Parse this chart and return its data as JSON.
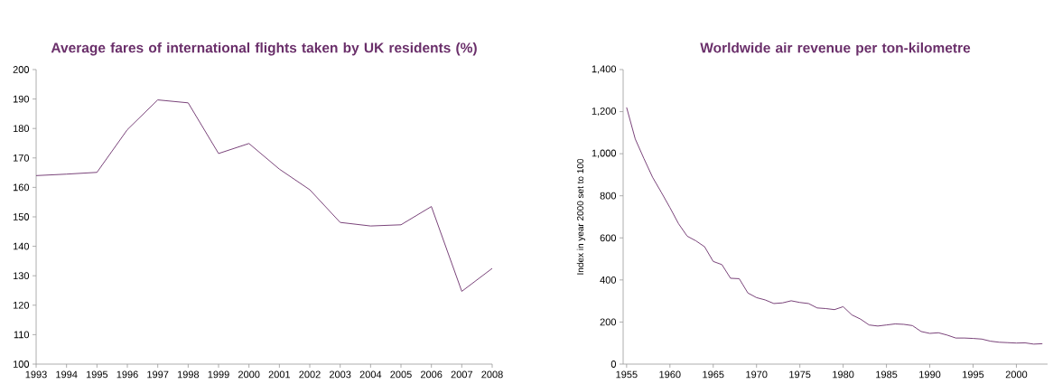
{
  "chart_data": [
    {
      "type": "line",
      "title": "Average fares of international flights taken by UK residents (%)",
      "categories": [
        "1993",
        "1994",
        "1995",
        "1996",
        "1997",
        "1998",
        "1999",
        "2000",
        "2001",
        "2002",
        "2003",
        "2004",
        "2005",
        "2006",
        "2007",
        "2008"
      ],
      "series": [
        {
          "color": "#6b2f6b",
          "values": [
            164,
            164.5,
            165.1,
            179.6,
            189.7,
            188.7,
            171.5,
            174.9,
            166.2,
            159.2,
            148.1,
            146.9,
            147.3,
            153.5,
            124.7,
            132.5
          ]
        }
      ],
      "ylim": [
        100,
        200
      ],
      "yticks": [
        100,
        110,
        120,
        130,
        140,
        150,
        160,
        170,
        180,
        190,
        200
      ],
      "grid": false,
      "marker": "none",
      "line_style": "solid"
    },
    {
      "type": "line",
      "title": "Worldwide air revenue per ton-kilometre",
      "ylabel": "Index in year 2000 set to 100",
      "x": [
        1955,
        1956,
        1957,
        1958,
        1959,
        1960,
        1961,
        1962,
        1963,
        1964,
        1965,
        1966,
        1967,
        1968,
        1969,
        1970,
        1971,
        1972,
        1973,
        1974,
        1975,
        1976,
        1977,
        1978,
        1979,
        1980,
        1981,
        1982,
        1983,
        1984,
        1985,
        1986,
        1987,
        1988,
        1989,
        1990,
        1991,
        1992,
        1993,
        1994,
        1995,
        1996,
        1997,
        1998,
        1999,
        2000,
        2001,
        2002,
        2003
      ],
      "series": [
        {
          "color": "#6b2f6b",
          "values": [
            1220,
            1070,
            977,
            888,
            817,
            744,
            667,
            608,
            586,
            558,
            488,
            473,
            408,
            406,
            338,
            316,
            305,
            288,
            291,
            301,
            293,
            288,
            267,
            264,
            259,
            273,
            234,
            214,
            186,
            181,
            186,
            191,
            189,
            183,
            155,
            146,
            149,
            138,
            124,
            124,
            122,
            119,
            109,
            104,
            102,
            100,
            101,
            95,
            97
          ]
        }
      ],
      "xlim": [
        1954.6,
        2003.6
      ],
      "xticks": [
        1955,
        1960,
        1965,
        1970,
        1975,
        1980,
        1985,
        1990,
        1995,
        2000
      ],
      "ylim": [
        0,
        1400
      ],
      "yticks": [
        0,
        {
          "value": 200,
          "label": "200"
        },
        {
          "value": 400,
          "label": "400"
        },
        {
          "value": 600,
          "label": "600"
        },
        {
          "value": 800,
          "label": "800"
        },
        {
          "value": 1000,
          "label": "1,000"
        },
        {
          "value": 1200,
          "label": "1,200"
        },
        {
          "value": 1400,
          "label": "1,400"
        }
      ],
      "grid": false,
      "marker": "none",
      "line_style": "solid"
    }
  ]
}
